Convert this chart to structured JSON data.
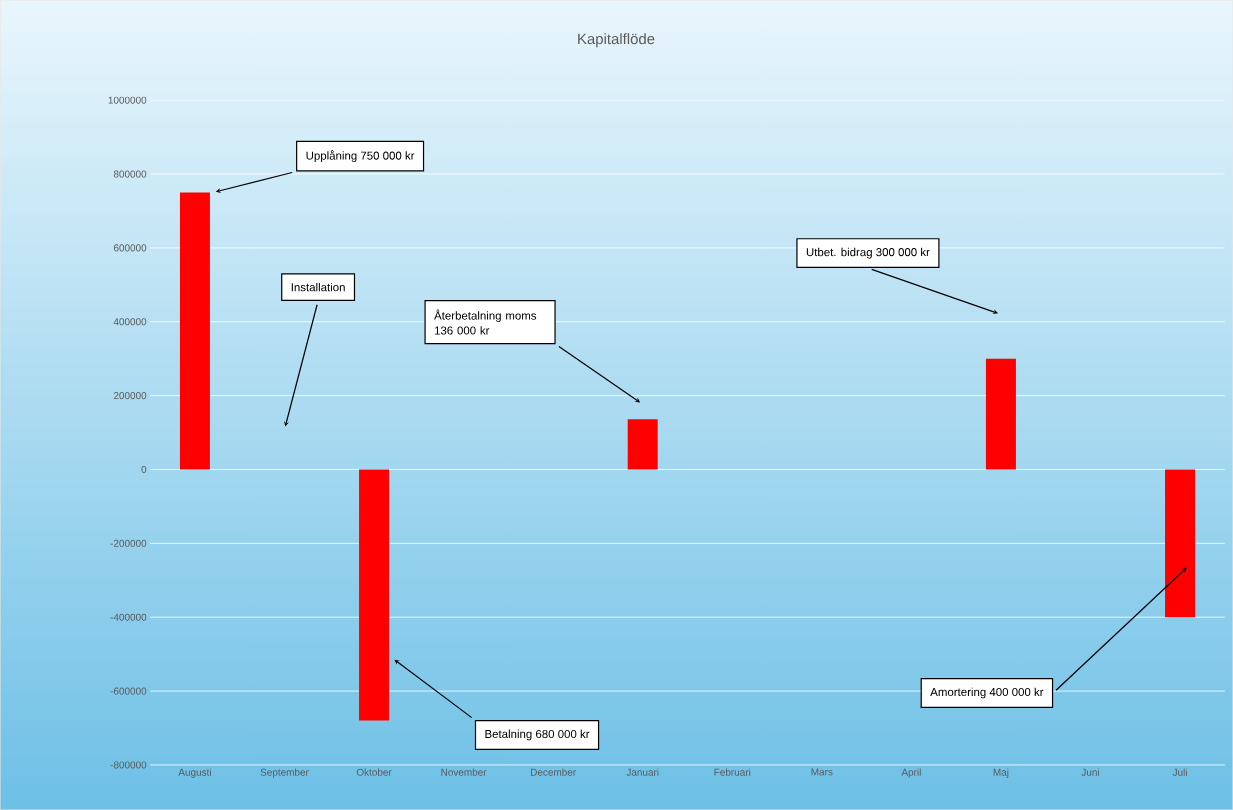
{
  "chart_data": {
    "type": "bar",
    "title": "Kapitalflöde",
    "categories": [
      "Augusti",
      "September",
      "Oktober",
      "November",
      "December",
      "Januari",
      "Februari",
      "Mars",
      "April",
      "Maj",
      "Juni",
      "Juli"
    ],
    "values": [
      750000,
      null,
      -680000,
      null,
      null,
      136000,
      null,
      null,
      null,
      300000,
      null,
      -400000
    ],
    "color": "#ff0000",
    "ylim": [
      -800000,
      1000000
    ],
    "yticks": [
      -800000,
      -600000,
      -400000,
      -200000,
      0,
      200000,
      400000,
      600000,
      800000,
      1000000
    ],
    "grid": "y",
    "annotations": [
      "Upplåning 750 000 kr",
      "Installation",
      "Återbetalning moms 136 000 kr",
      "Utbet. bidrag  300 000 kr",
      "Betalning 680 000 kr",
      "Amortering  400 000 kr"
    ]
  }
}
